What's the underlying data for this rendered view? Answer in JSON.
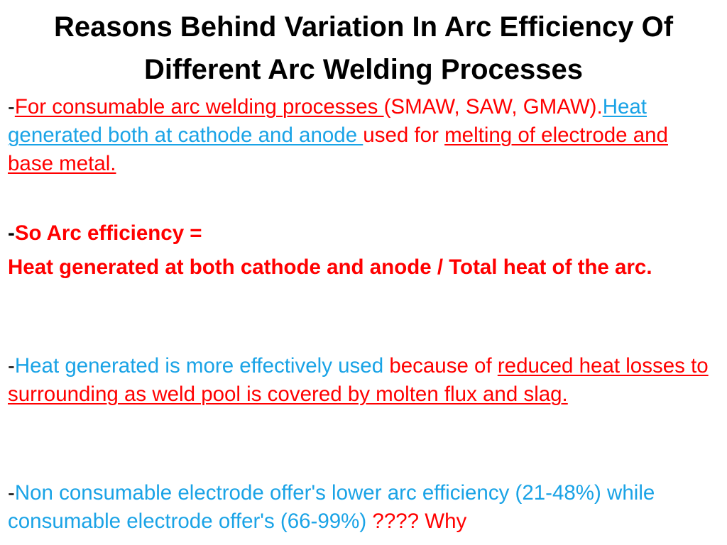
{
  "slide": {
    "title_line1": "Reasons  Behind Variation In Arc Efficiency Of",
    "title_line2": "Different Arc Welding Processes",
    "p1": {
      "dash": "-",
      "consumable": "For consumable arc welding processes ",
      "processes": "(SMAW, SAW, GMAW).",
      "heat_both": "Heat generated both at cathode and anode ",
      "used_for": "used for ",
      "melting": "melting of electrode and base metal."
    },
    "p2": {
      "dash": "-",
      "so_eff": "So Arc efficiency =",
      "formula": "Heat generated at both cathode and  anode / Total heat of the arc."
    },
    "p3": {
      "dash": "-",
      "heat_effective": "Heat generated is more effectively used ",
      "because": "because of ",
      "reduced": "reduced heat losses to surrounding as weld pool is covered by molten flux and slag."
    },
    "p4": {
      "dash": "-",
      "non_consumable": "Non consumable electrode  offer's lower arc efficiency (21-48%) while consumable electrode  offer's (66-99%) ",
      "why": "???? Why"
    }
  }
}
